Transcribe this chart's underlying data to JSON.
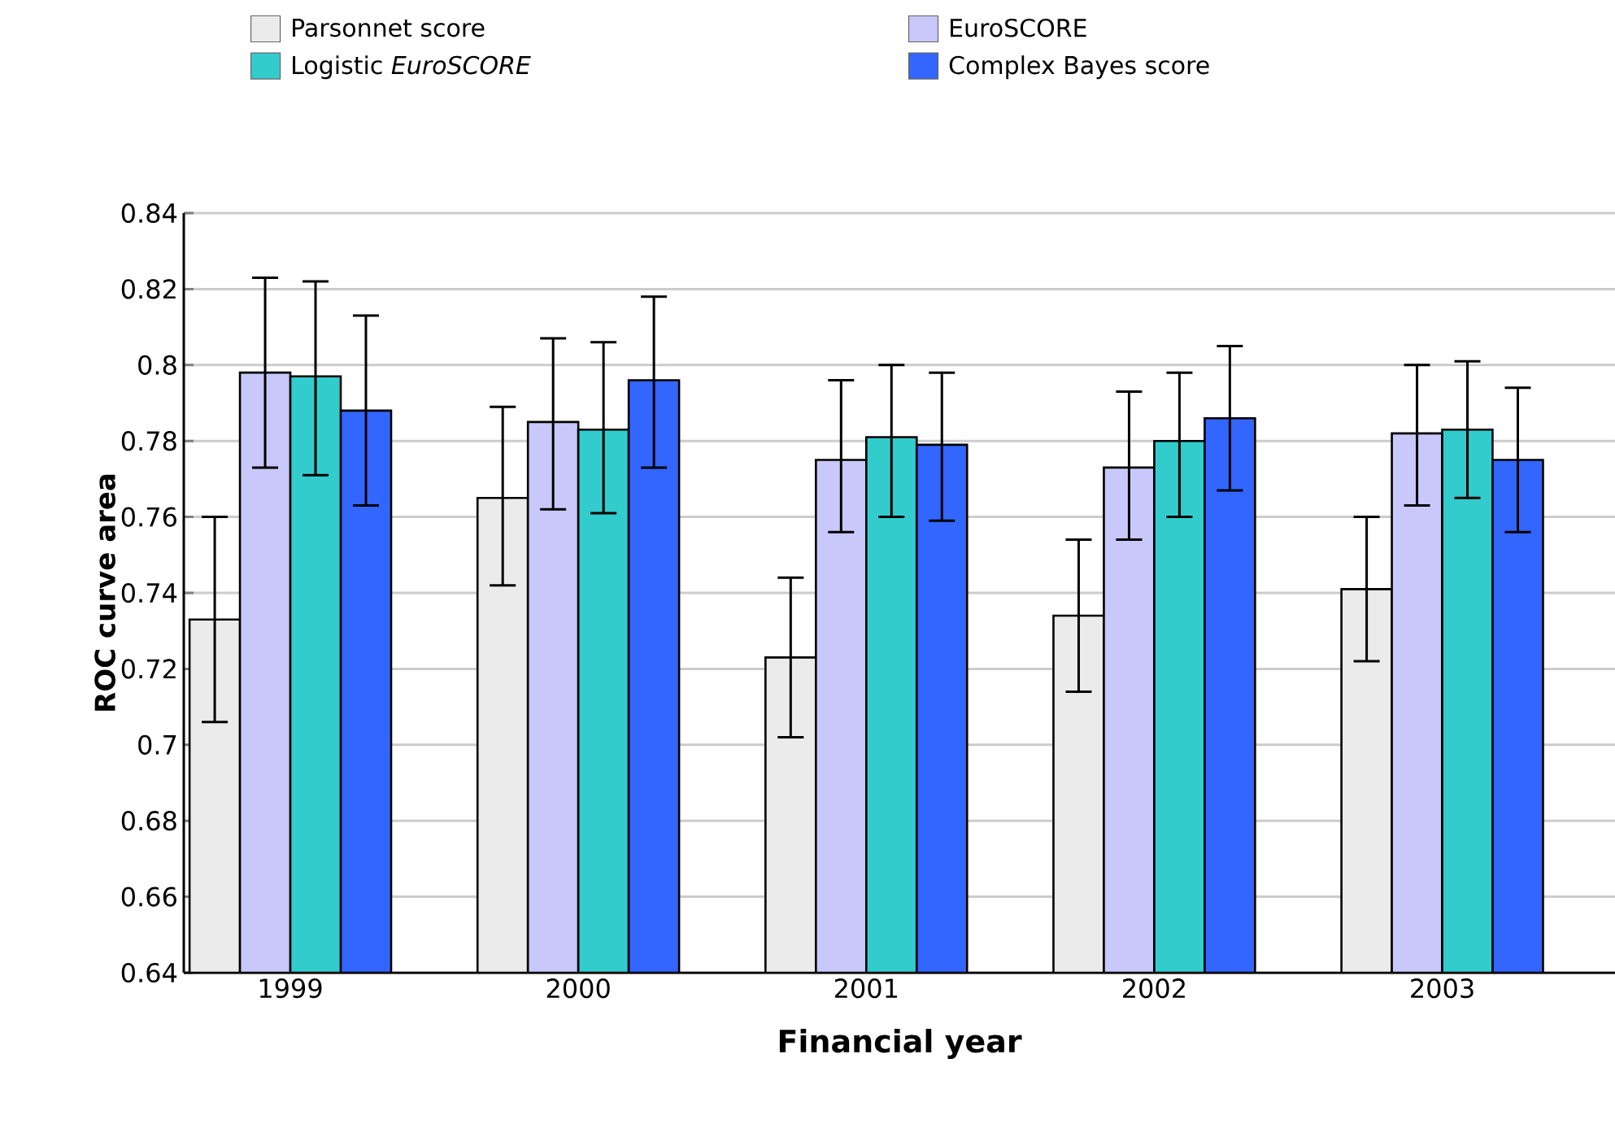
{
  "chart_data": {
    "type": "bar",
    "xlabel": "Financial year",
    "ylabel": "ROC curve area",
    "categories": [
      "1999",
      "2000",
      "2001",
      "2002",
      "2003"
    ],
    "series": [
      {
        "name": "Parsonnet score",
        "color": "#ebebeb",
        "values": [
          0.733,
          0.765,
          0.723,
          0.734,
          0.741
        ],
        "errors": [
          [
            0.706,
            0.76
          ],
          [
            0.742,
            0.789
          ],
          [
            0.702,
            0.744
          ],
          [
            0.714,
            0.754
          ],
          [
            0.722,
            0.76
          ]
        ]
      },
      {
        "name": "EuroSCORE",
        "color": "#c8c8fa",
        "values": [
          0.798,
          0.785,
          0.775,
          0.773,
          0.782
        ],
        "errors": [
          [
            0.773,
            0.823
          ],
          [
            0.762,
            0.807
          ],
          [
            0.756,
            0.796
          ],
          [
            0.754,
            0.793
          ],
          [
            0.763,
            0.8
          ]
        ]
      },
      {
        "name": "Logistic *EuroSCORE*",
        "color": "#33cccc",
        "values": [
          0.797,
          0.783,
          0.781,
          0.78,
          0.783
        ],
        "errors": [
          [
            0.771,
            0.822
          ],
          [
            0.761,
            0.806
          ],
          [
            0.76,
            0.8
          ],
          [
            0.76,
            0.798
          ],
          [
            0.765,
            0.801
          ]
        ]
      },
      {
        "name": "Complex Bayes score",
        "color": "#3366ff",
        "values": [
          0.788,
          0.796,
          0.779,
          0.786,
          0.775
        ],
        "errors": [
          [
            0.763,
            0.813
          ],
          [
            0.773,
            0.818
          ],
          [
            0.759,
            0.798
          ],
          [
            0.767,
            0.805
          ],
          [
            0.756,
            0.794
          ]
        ]
      }
    ],
    "ylim": [
      0.64,
      0.84
    ],
    "yticks": [
      0.64,
      0.66,
      0.68,
      0.7,
      0.72,
      0.74,
      0.76,
      0.78,
      0.8,
      0.82,
      0.84
    ],
    "grid": "y",
    "legend": "top"
  }
}
